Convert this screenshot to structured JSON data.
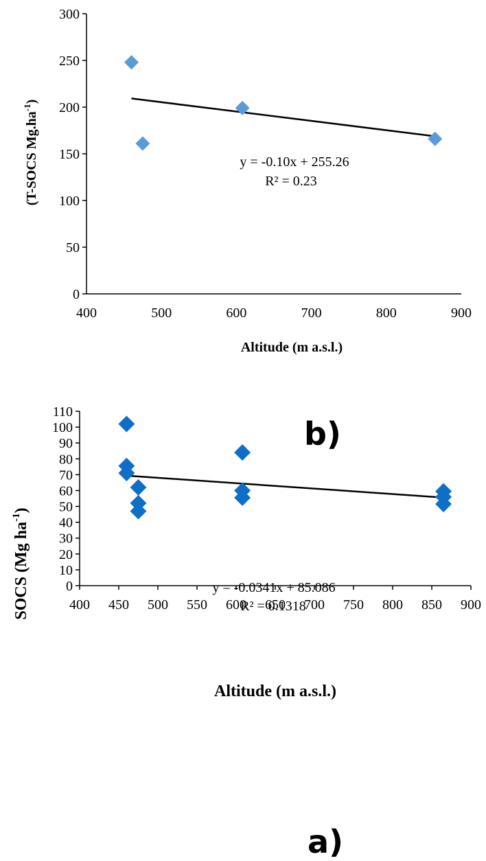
{
  "chart_data": [
    {
      "type": "scatter",
      "xlabel": "Altitude (m a.s.l.)",
      "ylabel_main": "(T-SOCS Mg.ha",
      "ylabel_sup": "-1",
      "ylabel_end": ")",
      "xlim": [
        400,
        900
      ],
      "ylim": [
        0,
        300
      ],
      "xticks": [
        400,
        500,
        600,
        700,
        800,
        900
      ],
      "yticks": [
        0,
        50,
        100,
        150,
        200,
        250,
        300
      ],
      "points": [
        {
          "x": 460,
          "y": 248
        },
        {
          "x": 475,
          "y": 161
        },
        {
          "x": 608,
          "y": 199
        },
        {
          "x": 865,
          "y": 166
        }
      ],
      "marker_color": "#5b9bd5",
      "trendline": {
        "slope": -0.1,
        "intercept": 255.26,
        "x_start": 460,
        "x_end": 865
      },
      "equation": "y = -0.10x + 255.26",
      "r2": "R² = 0.23",
      "panel_label": ""
    },
    {
      "type": "scatter",
      "xlabel": "Altitude (m a.s.l.)",
      "ylabel_main": "SOCS (Mg ha",
      "ylabel_sup": "-1",
      "ylabel_end": ")",
      "xlim": [
        400,
        900
      ],
      "ylim": [
        0,
        110
      ],
      "xticks": [
        400,
        450,
        500,
        550,
        600,
        650,
        700,
        750,
        800,
        850,
        900
      ],
      "yticks": [
        0,
        10,
        20,
        30,
        40,
        50,
        60,
        70,
        80,
        90,
        100,
        110
      ],
      "points": [
        {
          "x": 460,
          "y": 102
        },
        {
          "x": 460,
          "y": 75.5
        },
        {
          "x": 460,
          "y": 71
        },
        {
          "x": 475,
          "y": 62
        },
        {
          "x": 475,
          "y": 52
        },
        {
          "x": 475,
          "y": 47
        },
        {
          "x": 608,
          "y": 84
        },
        {
          "x": 608,
          "y": 60
        },
        {
          "x": 608,
          "y": 55.5
        },
        {
          "x": 865,
          "y": 59.5
        },
        {
          "x": 865,
          "y": 56
        },
        {
          "x": 865,
          "y": 51.5
        }
      ],
      "marker_color": "#0f6fc6",
      "trendline": {
        "slope": -0.0341,
        "intercept": 85.086,
        "x_start": 460,
        "x_end": 865
      },
      "equation": "y = -0.0341x + 85.086",
      "r2": "R² = 0.1318",
      "panel_label": "b)"
    }
  ],
  "bottom_label": "a)"
}
